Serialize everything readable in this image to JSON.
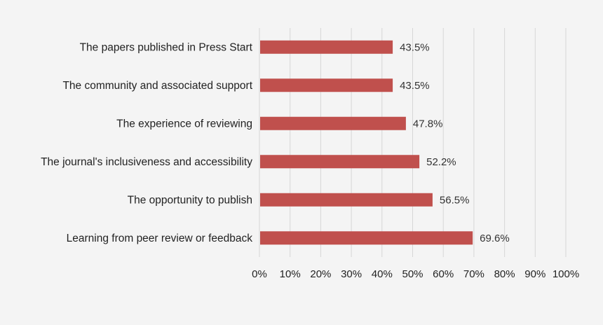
{
  "chart_data": {
    "type": "bar",
    "orientation": "horizontal",
    "title": "",
    "xlabel": "",
    "ylabel": "",
    "categories": [
      "The papers published in Press Start",
      "The community and associated support",
      "The experience of reviewing",
      "The journal's inclusiveness and accessibility",
      "The opportunity to publish",
      "Learning from peer review or feedback"
    ],
    "values": [
      43.5,
      43.5,
      47.8,
      52.2,
      56.5,
      69.6
    ],
    "value_labels": [
      "43.5%",
      "43.5%",
      "47.8%",
      "52.2%",
      "56.5%",
      "69.6%"
    ],
    "xlim": [
      0,
      100
    ],
    "xticks": [
      0,
      10,
      20,
      30,
      40,
      50,
      60,
      70,
      80,
      90,
      100
    ],
    "xtick_labels": [
      "0%",
      "10%",
      "20%",
      "30%",
      "40%",
      "50%",
      "60%",
      "70%",
      "80%",
      "90%",
      "100%"
    ],
    "grid": true,
    "legend": "none",
    "colors": {
      "bar": "#c0504d",
      "background": "#f4f4f4",
      "grid": "#d6d6d6"
    }
  }
}
